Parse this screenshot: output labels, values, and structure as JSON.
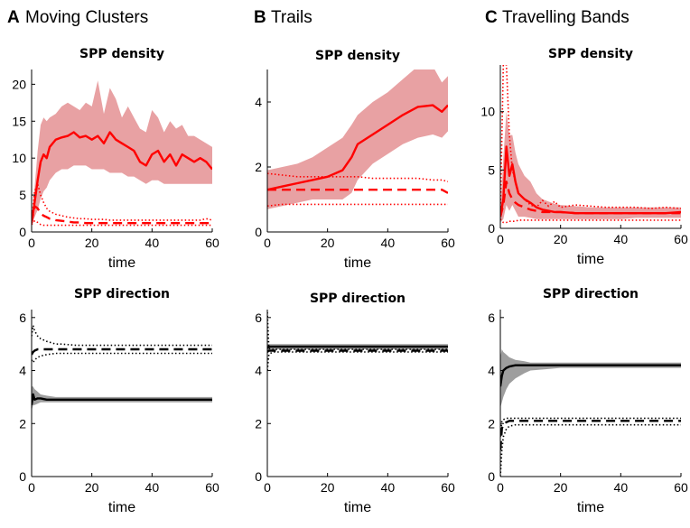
{
  "panels": [
    {
      "letter": "A",
      "name": "Moving Clusters"
    },
    {
      "letter": "B",
      "name": "Trails"
    },
    {
      "letter": "C",
      "name": "Travelling Bands"
    }
  ],
  "colors": {
    "density": "#ff0000",
    "density_band": "#e8a1a3",
    "direction": "#000000",
    "direction_band": "#9e9e9e"
  },
  "chart_data": [
    {
      "id": "A-density",
      "type": "line",
      "title": "SPP density",
      "xlabel": "time",
      "ylabel": "",
      "xlim": [
        0,
        60
      ],
      "ylim": [
        0,
        22
      ],
      "xticks": [
        0,
        20,
        40,
        60
      ],
      "yticks": [
        0,
        5,
        10,
        15,
        20
      ],
      "color": "#ff0000",
      "band_color": "#e8a1a3",
      "x": [
        0,
        1,
        2,
        3,
        4,
        5,
        6,
        8,
        10,
        12,
        14,
        16,
        18,
        20,
        22,
        24,
        26,
        28,
        30,
        32,
        34,
        36,
        38,
        40,
        42,
        44,
        46,
        48,
        50,
        52,
        54,
        56,
        58,
        60
      ],
      "series": [
        {
          "style": "solid",
          "values": [
            1.2,
            4.0,
            7.0,
            9.5,
            10.5,
            10.0,
            11.5,
            12.5,
            12.8,
            13.0,
            13.5,
            12.8,
            13.0,
            12.5,
            13.0,
            12.0,
            13.5,
            12.5,
            12.0,
            11.5,
            11.0,
            9.5,
            9.0,
            10.5,
            11.0,
            9.5,
            10.5,
            9.0,
            10.5,
            10.0,
            9.5,
            10.0,
            9.5,
            8.5
          ],
          "upper": [
            1.6,
            6.0,
            11.0,
            14.5,
            15.5,
            15.0,
            15.5,
            16.0,
            17.0,
            17.5,
            17.0,
            16.5,
            17.5,
            17.0,
            20.5,
            16.0,
            19.5,
            18.0,
            15.5,
            17.0,
            15.5,
            14.0,
            13.5,
            16.5,
            15.5,
            13.5,
            15.0,
            14.0,
            14.5,
            13.0,
            13.0,
            12.5,
            12.0,
            11.5
          ],
          "lower": [
            1.0,
            2.0,
            3.0,
            4.5,
            5.5,
            6.0,
            7.0,
            8.0,
            8.5,
            8.5,
            9.0,
            9.0,
            9.0,
            8.5,
            8.5,
            8.5,
            8.0,
            8.0,
            8.0,
            7.5,
            7.5,
            7.0,
            6.5,
            7.0,
            7.0,
            6.5,
            6.5,
            6.5,
            6.5,
            6.5,
            6.5,
            6.5,
            6.5,
            6.5
          ]
        },
        {
          "style": "dashed",
          "values": [
            1.2,
            3.5,
            3.2,
            2.5,
            2.2,
            2.0,
            1.8,
            1.6,
            1.5,
            1.4,
            1.3,
            1.3,
            1.2,
            1.2,
            1.2,
            1.2,
            1.2,
            1.2,
            1.2,
            1.2,
            1.2,
            1.2,
            1.2,
            1.2,
            1.2,
            1.2,
            1.2,
            1.2,
            1.2,
            1.2,
            1.2,
            1.2,
            1.2,
            1.2
          ],
          "upper": [
            1.3,
            5.5,
            6.5,
            5.0,
            4.0,
            3.2,
            2.8,
            2.4,
            2.2,
            2.0,
            1.9,
            1.8,
            1.8,
            1.7,
            1.7,
            1.7,
            1.6,
            1.6,
            1.6,
            1.6,
            1.6,
            1.6,
            1.6,
            1.6,
            1.6,
            1.6,
            1.6,
            1.6,
            1.6,
            1.6,
            1.6,
            1.6,
            1.8,
            1.6
          ],
          "lower": [
            1.0,
            1.5,
            1.3,
            1.0,
            0.9,
            0.9,
            0.9,
            0.9,
            0.9,
            0.9,
            0.9,
            0.9,
            0.9,
            0.9,
            0.9,
            0.9,
            0.9,
            0.9,
            0.9,
            0.9,
            0.9,
            0.9,
            0.9,
            0.9,
            0.9,
            0.9,
            0.9,
            0.9,
            0.9,
            0.9,
            0.9,
            0.9,
            0.9,
            0.9
          ]
        }
      ]
    },
    {
      "id": "B-density",
      "type": "line",
      "title": "SPP density",
      "xlabel": "time",
      "ylabel": "",
      "xlim": [
        0,
        60
      ],
      "ylim": [
        0,
        5
      ],
      "xticks": [
        0,
        20,
        40,
        60
      ],
      "yticks": [
        0,
        2,
        4
      ],
      "color": "#ff0000",
      "band_color": "#e8a1a3",
      "x": [
        0,
        5,
        10,
        15,
        20,
        25,
        28,
        30,
        35,
        40,
        45,
        50,
        55,
        58,
        60
      ],
      "series": [
        {
          "style": "solid",
          "values": [
            1.3,
            1.4,
            1.5,
            1.6,
            1.7,
            1.9,
            2.3,
            2.7,
            3.0,
            3.3,
            3.6,
            3.85,
            3.9,
            3.7,
            3.9
          ],
          "upper": [
            1.9,
            2.0,
            2.1,
            2.3,
            2.6,
            2.9,
            3.3,
            3.6,
            4.0,
            4.3,
            4.7,
            5.1,
            5.1,
            4.6,
            4.8
          ],
          "lower": [
            0.7,
            0.8,
            0.9,
            1.0,
            1.0,
            1.0,
            1.2,
            1.6,
            2.1,
            2.4,
            2.7,
            2.9,
            3.0,
            2.9,
            3.1
          ]
        },
        {
          "style": "dashed",
          "values": [
            1.3,
            1.3,
            1.3,
            1.3,
            1.3,
            1.3,
            1.3,
            1.3,
            1.3,
            1.3,
            1.3,
            1.3,
            1.3,
            1.3,
            1.2
          ],
          "upper": [
            1.8,
            1.75,
            1.7,
            1.7,
            1.7,
            1.7,
            1.7,
            1.7,
            1.65,
            1.65,
            1.65,
            1.65,
            1.6,
            1.6,
            1.55
          ],
          "lower": [
            0.8,
            0.85,
            0.85,
            0.85,
            0.85,
            0.85,
            0.85,
            0.85,
            0.85,
            0.85,
            0.85,
            0.85,
            0.85,
            0.85,
            0.85
          ]
        }
      ]
    },
    {
      "id": "C-density",
      "type": "line",
      "title": "SPP density",
      "xlabel": "time",
      "ylabel": "",
      "xlim": [
        0,
        60
      ],
      "ylim": [
        0,
        14
      ],
      "xticks": [
        0,
        20,
        40,
        60
      ],
      "yticks": [
        0,
        5,
        10
      ],
      "color": "#ff0000",
      "band_color": "#e8a1a3",
      "x": [
        0,
        1,
        2,
        3,
        4,
        5,
        6,
        8,
        10,
        12,
        14,
        16,
        18,
        20,
        25,
        30,
        35,
        40,
        45,
        50,
        55,
        60
      ],
      "series": [
        {
          "style": "solid",
          "values": [
            1.0,
            2.5,
            7.0,
            4.5,
            5.5,
            4.0,
            3.0,
            2.5,
            2.2,
            1.8,
            1.6,
            1.5,
            1.4,
            1.4,
            1.3,
            1.3,
            1.3,
            1.3,
            1.3,
            1.3,
            1.3,
            1.4
          ],
          "upper": [
            1.5,
            6.0,
            10.0,
            8.0,
            8.0,
            6.5,
            5.5,
            4.5,
            4.0,
            3.0,
            2.5,
            2.3,
            2.1,
            2.0,
            1.9,
            1.8,
            1.8,
            1.8,
            1.8,
            1.8,
            1.8,
            1.8
          ],
          "lower": [
            0.5,
            0.8,
            2.0,
            1.5,
            2.0,
            1.5,
            1.0,
            1.0,
            0.9,
            0.8,
            0.8,
            0.8,
            0.8,
            0.8,
            0.8,
            0.8,
            0.8,
            0.8,
            0.9,
            0.9,
            0.9,
            0.9
          ]
        },
        {
          "style": "dashed",
          "values": [
            1.0,
            2.0,
            4.0,
            3.0,
            2.5,
            2.2,
            2.0,
            1.8,
            1.6,
            1.5,
            1.4,
            1.4,
            1.4,
            1.4,
            1.3,
            1.3,
            1.3,
            1.3,
            1.3,
            1.3,
            1.3,
            1.3
          ],
          "upper": [
            1.2,
            14.0,
            14.0,
            8.0,
            5.0,
            4.0,
            3.0,
            2.5,
            2.0,
            1.8,
            2.4,
            1.9,
            2.3,
            1.8,
            2.0,
            1.9,
            1.8,
            1.8,
            1.8,
            1.7,
            1.8,
            1.7
          ],
          "lower": [
            0.8,
            0.5,
            0.5,
            0.6,
            0.6,
            0.6,
            0.7,
            0.7,
            0.7,
            0.7,
            0.7,
            0.7,
            0.7,
            0.7,
            0.7,
            0.7,
            0.7,
            0.7,
            0.7,
            0.7,
            0.7,
            0.7
          ]
        }
      ]
    },
    {
      "id": "A-direction",
      "type": "line",
      "title": "SPP direction",
      "xlabel": "time",
      "ylabel": "",
      "xlim": [
        0,
        60
      ],
      "ylim": [
        0,
        6.3
      ],
      "xticks": [
        0,
        20,
        40,
        60
      ],
      "yticks": [
        0,
        2,
        4,
        6
      ],
      "color": "#000000",
      "band_color": "#9e9e9e",
      "x": [
        0,
        0.5,
        1,
        2,
        3,
        5,
        8,
        10,
        15,
        20,
        30,
        40,
        50,
        60
      ],
      "series": [
        {
          "style": "solid",
          "values": [
            2.7,
            3.1,
            2.9,
            2.95,
            2.95,
            2.9,
            2.9,
            2.9,
            2.9,
            2.9,
            2.9,
            2.9,
            2.9,
            2.9
          ],
          "upper": [
            3.4,
            3.4,
            3.3,
            3.2,
            3.1,
            3.05,
            3.0,
            3.0,
            3.0,
            3.0,
            3.0,
            3.0,
            3.0,
            3.0
          ],
          "lower": [
            2.5,
            2.7,
            2.7,
            2.75,
            2.8,
            2.8,
            2.8,
            2.8,
            2.8,
            2.8,
            2.8,
            2.8,
            2.8,
            2.8
          ]
        },
        {
          "style": "dashed",
          "values": [
            4.6,
            4.7,
            4.75,
            4.8,
            4.8,
            4.8,
            4.8,
            4.8,
            4.8,
            4.8,
            4.8,
            4.8,
            4.8,
            4.8
          ],
          "upper": [
            5.3,
            5.7,
            5.5,
            5.3,
            5.2,
            5.1,
            5.0,
            5.0,
            4.95,
            4.95,
            4.95,
            4.95,
            4.95,
            4.95
          ],
          "lower": [
            4.4,
            4.3,
            4.4,
            4.5,
            4.55,
            4.6,
            4.65,
            4.65,
            4.65,
            4.65,
            4.65,
            4.65,
            4.65,
            4.65
          ]
        }
      ]
    },
    {
      "id": "B-direction",
      "type": "line",
      "title": "SPP direction",
      "xlabel": "time",
      "ylabel": "",
      "xlim": [
        0,
        60
      ],
      "ylim": [
        0,
        6.3
      ],
      "xticks": [
        0,
        20,
        40,
        60
      ],
      "yticks": [
        0,
        2,
        4,
        6
      ],
      "color": "#000000",
      "band_color": "#9e9e9e",
      "x": [
        0,
        0.5,
        1,
        2,
        5,
        10,
        20,
        30,
        40,
        50,
        60
      ],
      "series": [
        {
          "style": "solid",
          "values": [
            4.85,
            4.9,
            4.9,
            4.9,
            4.9,
            4.9,
            4.9,
            4.9,
            4.9,
            4.9,
            4.9
          ],
          "upper": [
            5.0,
            5.0,
            5.0,
            5.0,
            5.0,
            5.0,
            5.0,
            5.0,
            5.0,
            5.0,
            5.0
          ],
          "lower": [
            4.75,
            4.8,
            4.8,
            4.8,
            4.8,
            4.8,
            4.8,
            4.8,
            4.8,
            4.8,
            4.8
          ]
        },
        {
          "style": "dashed",
          "values": [
            4.7,
            4.75,
            4.75,
            4.75,
            4.75,
            4.75,
            4.75,
            4.75,
            4.75,
            4.75,
            4.75
          ],
          "upper": [
            6.2,
            4.85,
            4.8,
            4.8,
            4.8,
            4.8,
            4.8,
            4.8,
            4.8,
            4.8,
            4.8
          ],
          "lower": [
            4.0,
            4.6,
            4.65,
            4.7,
            4.7,
            4.7,
            4.7,
            4.7,
            4.7,
            4.7,
            4.7
          ]
        }
      ]
    },
    {
      "id": "C-direction",
      "type": "line",
      "title": "SPP direction",
      "xlabel": "time",
      "ylabel": "",
      "xlim": [
        0,
        60
      ],
      "ylim": [
        0,
        6.3
      ],
      "xticks": [
        0,
        20,
        40,
        60
      ],
      "yticks": [
        0,
        2,
        4,
        6
      ],
      "color": "#000000",
      "band_color": "#9e9e9e",
      "x": [
        0,
        0.5,
        1,
        2,
        3,
        5,
        8,
        10,
        15,
        20,
        30,
        40,
        50,
        60
      ],
      "series": [
        {
          "style": "solid",
          "values": [
            3.4,
            3.8,
            4.0,
            4.1,
            4.15,
            4.2,
            4.2,
            4.2,
            4.2,
            4.2,
            4.2,
            4.2,
            4.2,
            4.2
          ],
          "upper": [
            4.5,
            4.8,
            4.7,
            4.6,
            4.5,
            4.4,
            4.35,
            4.3,
            4.3,
            4.3,
            4.3,
            4.3,
            4.3,
            4.3
          ],
          "lower": [
            2.6,
            2.8,
            3.0,
            3.3,
            3.5,
            3.7,
            3.9,
            4.0,
            4.05,
            4.1,
            4.1,
            4.1,
            4.1,
            4.1
          ]
        },
        {
          "style": "dashed",
          "values": [
            1.0,
            1.8,
            2.0,
            2.05,
            2.1,
            2.1,
            2.1,
            2.1,
            2.1,
            2.1,
            2.1,
            2.1,
            2.1,
            2.1
          ],
          "upper": [
            1.5,
            2.1,
            2.15,
            2.2,
            2.2,
            2.2,
            2.2,
            2.2,
            2.2,
            2.2,
            2.2,
            2.2,
            2.2,
            2.2
          ],
          "lower": [
            0.0,
            1.0,
            1.5,
            1.8,
            1.9,
            1.95,
            1.95,
            1.95,
            1.95,
            1.95,
            1.95,
            1.95,
            1.95,
            1.95
          ]
        }
      ]
    }
  ]
}
